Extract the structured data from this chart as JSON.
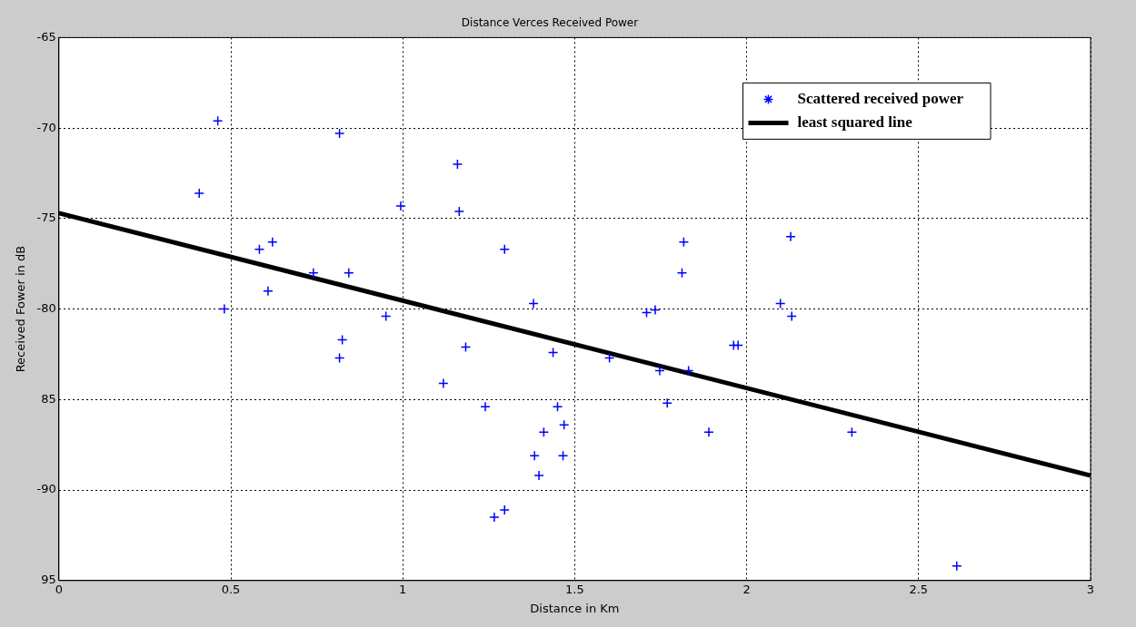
{
  "chart_data": {
    "type": "scatter",
    "title": "Distance Verces Received Power",
    "xlabel": "Distance in Km",
    "ylabel": "Received Fower in dB",
    "xlim": [
      0,
      3
    ],
    "xticks": [
      0,
      0.5,
      1,
      1.5,
      2,
      2.5,
      3
    ],
    "ylim": [
      -95,
      -65
    ],
    "yticks": [
      -65,
      -70,
      -75,
      -80,
      {
        "value": -85,
        "label": "85"
      },
      -90,
      {
        "value": -95,
        "label": "95"
      }
    ],
    "grid": true,
    "legend": "top right",
    "series": [
      {
        "name": "Scattered received power",
        "color": "#0000ff",
        "marker": "cross",
        "x": [
          0.462,
          0.408,
          0.816,
          0.994,
          0.583,
          0.621,
          0.74,
          0.843,
          0.608,
          0.481,
          0.951,
          0.824,
          0.816,
          1.159,
          1.164,
          1.296,
          1.38,
          1.183,
          1.437,
          1.601,
          1.118,
          1.24,
          1.45,
          1.469,
          1.41,
          1.383,
          1.466,
          1.396,
          1.266,
          1.296,
          1.709,
          1.734,
          1.747,
          1.831,
          1.769,
          1.89,
          1.817,
          1.812,
          1.962,
          1.975,
          2.098,
          2.128,
          2.131,
          2.306,
          2.611
        ],
        "values": [
          -69.6,
          -73.6,
          -70.3,
          -74.3,
          -76.7,
          -76.3,
          -78.0,
          -78.0,
          -79.0,
          -80.0,
          -80.4,
          -81.7,
          -82.7,
          -72.0,
          -74.6,
          -76.7,
          -79.7,
          -82.1,
          -82.4,
          -82.7,
          -84.1,
          -85.4,
          -85.4,
          -86.4,
          -86.8,
          -88.1,
          -88.1,
          -89.2,
          -91.5,
          -91.1,
          -80.2,
          -80.05,
          -83.4,
          -83.4,
          -85.2,
          -86.8,
          -76.3,
          -78.0,
          -82.0,
          -82.0,
          -79.7,
          -76.0,
          -80.4,
          -86.8,
          -94.2
        ]
      },
      {
        "name": "least squared line",
        "color": "#000000",
        "type": "line",
        "marker": "none",
        "line_style": "solid",
        "x": [
          0,
          3
        ],
        "values": [
          -74.7,
          -89.2
        ]
      }
    ]
  }
}
